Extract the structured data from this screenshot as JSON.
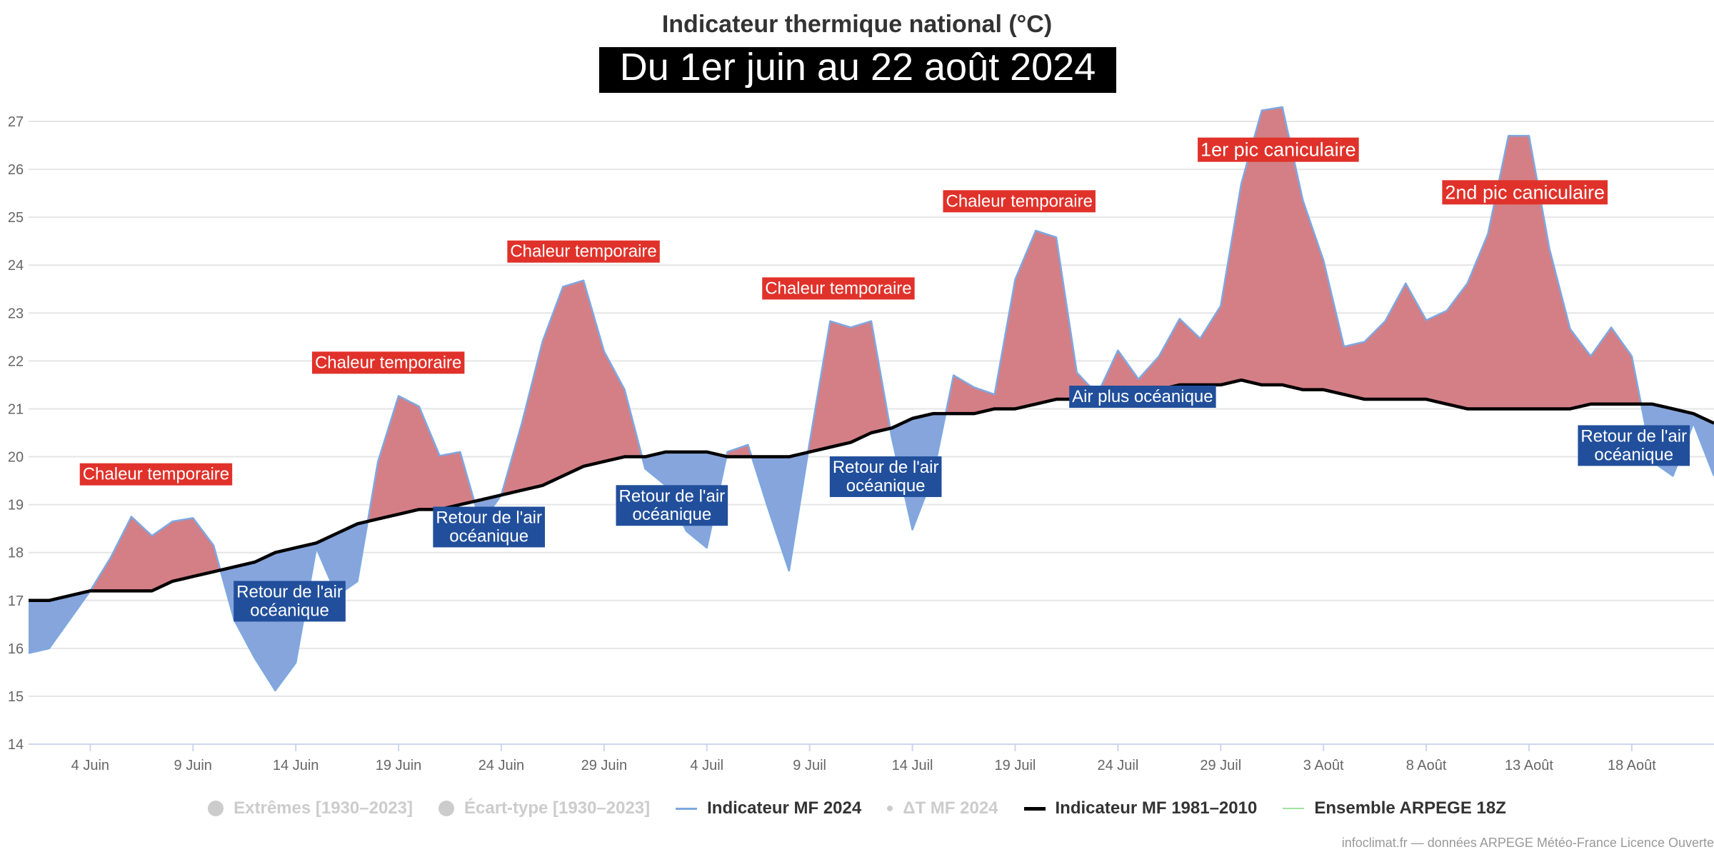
{
  "chart_data": {
    "type": "area",
    "title": "Indicateur thermique national (°C)",
    "subtitle": "Du 1er juin au 22 août 2024",
    "ylim": [
      14,
      27
    ],
    "yticks": [
      14,
      15,
      16,
      17,
      18,
      19,
      20,
      21,
      22,
      23,
      24,
      25,
      26,
      27
    ],
    "xlim": [
      0,
      82
    ],
    "xticks": [
      {
        "x": 3,
        "label": "4 Juin"
      },
      {
        "x": 8,
        "label": "9 Juin"
      },
      {
        "x": 13,
        "label": "14 Juin"
      },
      {
        "x": 18,
        "label": "19 Juin"
      },
      {
        "x": 23,
        "label": "24 Juin"
      },
      {
        "x": 28,
        "label": "29 Juin"
      },
      {
        "x": 33,
        "label": "4 Juil"
      },
      {
        "x": 38,
        "label": "9 Juil"
      },
      {
        "x": 43,
        "label": "14 Juil"
      },
      {
        "x": 48,
        "label": "19 Juil"
      },
      {
        "x": 53,
        "label": "24 Juil"
      },
      {
        "x": 58,
        "label": "29 Juil"
      },
      {
        "x": 63,
        "label": "3 Août"
      },
      {
        "x": 68,
        "label": "8 Août"
      },
      {
        "x": 73,
        "label": "13 Août"
      },
      {
        "x": 78,
        "label": "18 Août"
      }
    ],
    "grid": true,
    "colors": {
      "above": "#d47f86",
      "below": "#86a5dc",
      "series_2024": "#7ea8e0",
      "normal_line": "#000000",
      "label_warm": "#e0322a",
      "label_cool": "#214f9b"
    },
    "series": [
      {
        "name": "Indicateur MF 2024",
        "values": [
          15.9,
          16.0,
          16.6,
          17.2,
          17.9,
          18.75,
          18.35,
          18.65,
          18.72,
          18.15,
          16.6,
          15.8,
          15.12,
          15.7,
          18.1,
          17.1,
          17.4,
          19.9,
          21.27,
          21.05,
          20.02,
          20.1,
          18.6,
          19.2,
          20.7,
          22.4,
          23.55,
          23.68,
          22.2,
          21.4,
          19.75,
          19.4,
          18.45,
          18.1,
          20.1,
          20.25,
          18.9,
          17.62,
          20.3,
          22.83,
          22.7,
          22.83,
          20.4,
          18.48,
          19.6,
          21.7,
          21.45,
          21.3,
          23.7,
          24.72,
          24.58,
          21.76,
          21.3,
          22.22,
          21.62,
          22.1,
          22.88,
          22.47,
          23.15,
          25.7,
          27.23,
          27.3,
          25.35,
          24.1,
          22.3,
          22.4,
          22.83,
          23.62,
          22.85,
          23.05,
          23.62,
          24.65,
          26.7,
          26.7,
          24.33,
          22.67,
          22.1,
          22.7,
          22.1,
          19.9,
          19.6,
          20.7,
          19.6
        ]
      },
      {
        "name": "Indicateur MF 1981–2010",
        "values": [
          17.0,
          17.0,
          17.1,
          17.2,
          17.2,
          17.2,
          17.2,
          17.4,
          17.5,
          17.6,
          17.7,
          17.8,
          18.0,
          18.1,
          18.2,
          18.4,
          18.6,
          18.7,
          18.8,
          18.9,
          18.9,
          19.0,
          19.1,
          19.2,
          19.3,
          19.4,
          19.6,
          19.8,
          19.9,
          20.0,
          20.0,
          20.1,
          20.1,
          20.1,
          20.0,
          20.0,
          20.0,
          20.0,
          20.1,
          20.2,
          20.3,
          20.5,
          20.6,
          20.8,
          20.9,
          20.9,
          20.9,
          21.0,
          21.0,
          21.1,
          21.2,
          21.2,
          21.3,
          21.3,
          21.4,
          21.4,
          21.5,
          21.5,
          21.5,
          21.6,
          21.5,
          21.5,
          21.4,
          21.4,
          21.3,
          21.2,
          21.2,
          21.2,
          21.2,
          21.1,
          21.0,
          21.0,
          21.0,
          21.0,
          21.0,
          21.0,
          21.1,
          21.1,
          21.1,
          21.1,
          21.0,
          20.9,
          20.7
        ]
      }
    ],
    "annotations": [
      {
        "x": 6.2,
        "y": 19.65,
        "text": "Chaleur temporaire",
        "kind": "warm"
      },
      {
        "x": 17.5,
        "y": 21.98,
        "text": "Chaleur temporaire",
        "kind": "warm"
      },
      {
        "x": 27,
        "y": 24.3,
        "text": "Chaleur temporaire",
        "kind": "warm"
      },
      {
        "x": 39.4,
        "y": 23.53,
        "text": "Chaleur temporaire",
        "kind": "warm"
      },
      {
        "x": 48.2,
        "y": 25.35,
        "text": "Chaleur temporaire",
        "kind": "warm"
      },
      {
        "x": 60.8,
        "y": 26.42,
        "text": "1er pic caniculaire",
        "kind": "warm"
      },
      {
        "x": 72.8,
        "y": 25.53,
        "text": "2nd pic caniculaire",
        "kind": "warm"
      },
      {
        "x": 12.7,
        "y": 17.0,
        "text": "Retour de l'air\nocéanique",
        "kind": "cool"
      },
      {
        "x": 22.4,
        "y": 18.55,
        "text": "Retour de l'air\nocéanique",
        "kind": "cool"
      },
      {
        "x": 31.3,
        "y": 19.0,
        "text": "Retour de l'air\nocéanique",
        "kind": "cool"
      },
      {
        "x": 41.7,
        "y": 19.6,
        "text": "Retour de l'air\nocéanique",
        "kind": "cool"
      },
      {
        "x": 54.2,
        "y": 21.27,
        "text": "Air plus océanique",
        "kind": "cool"
      },
      {
        "x": 78.1,
        "y": 20.25,
        "text": "Retour de l'air\nocéanique",
        "kind": "cool"
      }
    ]
  },
  "legend": {
    "extremes": "Extrêmes [1930–2023]",
    "ecart": "Écart-type [1930–2023]",
    "mf2024": "Indicateur MF 2024",
    "delta": "ΔT MF 2024",
    "normal": "Indicateur MF 1981–2010",
    "arpege": "Ensemble ARPEGE 18Z"
  },
  "credit": "infoclimat.fr — données ARPEGE Météo-France Licence Ouverte"
}
